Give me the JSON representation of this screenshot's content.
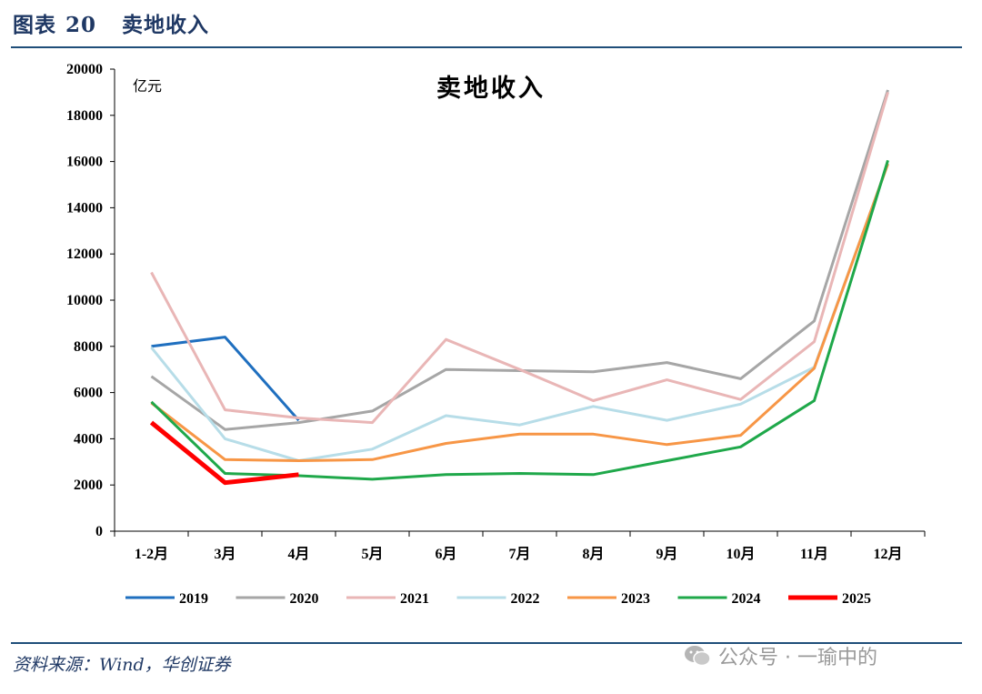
{
  "header": {
    "label": "图表",
    "number": "20",
    "title": "卖地收入"
  },
  "footer": {
    "source": "资料来源：Wind，华创证券",
    "watermark": "公众号 · 一瑜中的"
  },
  "colors": {
    "rule": "#1f4e79",
    "heading": "#1f3864"
  },
  "chart_data": {
    "type": "line",
    "title": "卖地收入",
    "ylabel": "亿元",
    "xlabel": "",
    "ylim": [
      0,
      20000
    ],
    "yticks": [
      0,
      2000,
      4000,
      6000,
      8000,
      10000,
      12000,
      14000,
      16000,
      18000,
      20000
    ],
    "categories": [
      "1-2月",
      "3月",
      "4月",
      "5月",
      "6月",
      "7月",
      "8月",
      "9月",
      "10月",
      "11月",
      "12月"
    ],
    "grid": false,
    "legend": "bottom",
    "series": [
      {
        "name": "2019",
        "color": "#1f6fbf",
        "values": [
          8000,
          8400,
          4800,
          null,
          null,
          null,
          null,
          null,
          null,
          null,
          null
        ]
      },
      {
        "name": "2020",
        "color": "#a6a6a6",
        "values": [
          6700,
          4400,
          4700,
          5200,
          7000,
          6950,
          6900,
          7300,
          6600,
          9100,
          19100
        ]
      },
      {
        "name": "2021",
        "color": "#e9b6b6",
        "values": [
          11200,
          5250,
          4900,
          4700,
          8300,
          7000,
          5650,
          6550,
          5700,
          8200,
          19000
        ]
      },
      {
        "name": "2022",
        "color": "#b7dde8",
        "values": [
          7950,
          4000,
          3050,
          3550,
          5000,
          4600,
          5400,
          4800,
          5500,
          7100,
          15900
        ]
      },
      {
        "name": "2023",
        "color": "#f79646",
        "values": [
          5550,
          3100,
          3050,
          3100,
          3800,
          4200,
          4200,
          3750,
          4150,
          7050,
          15900
        ]
      },
      {
        "name": "2024",
        "color": "#1fa84a",
        "values": [
          5600,
          2500,
          2400,
          2250,
          2450,
          2500,
          2450,
          3050,
          3650,
          5650,
          16050
        ]
      },
      {
        "name": "2025",
        "color": "#ff0000",
        "values": [
          4700,
          2100,
          2450,
          null,
          null,
          null,
          null,
          null,
          null,
          null,
          null
        ]
      }
    ]
  }
}
